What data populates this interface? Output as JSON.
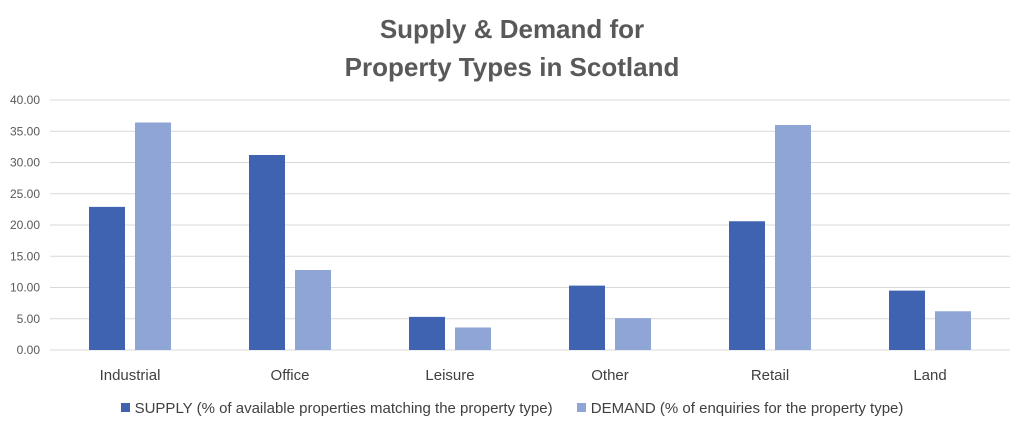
{
  "chart_data": {
    "type": "bar",
    "title_lines": [
      "Supply & Demand for",
      "Property Types in Scotland"
    ],
    "categories": [
      "Industrial",
      "Office",
      "Leisure",
      "Other",
      "Retail",
      "Land"
    ],
    "series": [
      {
        "name": "SUPPLY (% of available properties matching the property type)",
        "color": "#3f63b0",
        "values": [
          22.9,
          31.2,
          5.3,
          10.3,
          20.6,
          9.5
        ]
      },
      {
        "name": "DEMAND (% of enquiries for the property type)",
        "color": "#8fa5d6",
        "values": [
          36.4,
          12.8,
          3.6,
          5.1,
          36.0,
          6.2
        ]
      }
    ],
    "ylim": [
      0,
      40
    ],
    "yticks": [
      "0.00",
      "5.00",
      "10.00",
      "15.00",
      "20.00",
      "25.00",
      "30.00",
      "35.00",
      "40.00"
    ],
    "grid": true,
    "legend_position": "bottom",
    "gridline_color": "#d9d9d9"
  }
}
